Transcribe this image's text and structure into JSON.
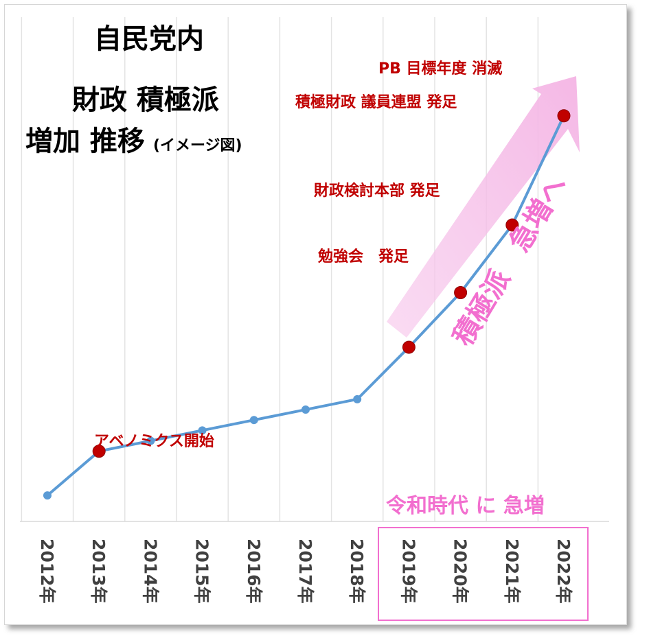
{
  "chart_data": {
    "type": "line",
    "title": "自民党内",
    "subtitle_line1": "財政 積極派",
    "subtitle_line2": "増加 推移",
    "subtitle_note": "(イメージ図)",
    "x": [
      "2012年",
      "2013年",
      "2014年",
      "2015年",
      "2016年",
      "2017年",
      "2018年",
      "2019年",
      "2020年",
      "2021年",
      "2022年"
    ],
    "values": [
      1.0,
      2.7,
      3.1,
      3.5,
      3.9,
      4.3,
      4.7,
      6.7,
      8.8,
      11.4,
      15.6
    ],
    "ylim": [
      0,
      18
    ],
    "grid": "vertical",
    "line_color": "#5b9bd5",
    "marker_color": "#5b9bd5",
    "highlight_color": "#c00000",
    "accent_color": "#f26fcf",
    "highlighted_indices": [
      1,
      7,
      8,
      9,
      10
    ],
    "annotations": [
      {
        "index": 1,
        "text": "アベノミクス開始"
      },
      {
        "index": 8,
        "text": "勉強会　発足"
      },
      {
        "index": 9,
        "text": "財政検討本部 発足"
      },
      {
        "index": 10,
        "text": "PB 目標年度 消滅"
      },
      {
        "index": 10,
        "text": "積極財政 議員連盟 発足"
      }
    ],
    "trend_label": "積極派　急増へ",
    "period_label": "令和時代 に 急増",
    "period_range": [
      7,
      10
    ]
  }
}
